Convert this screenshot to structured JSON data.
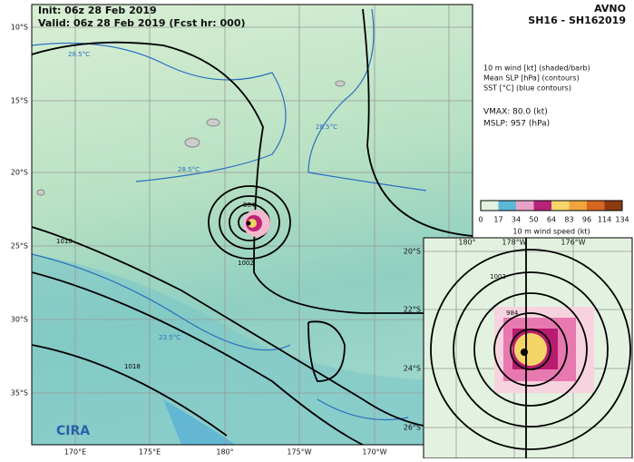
{
  "header": {
    "init": "Init: 06z 28 Feb 2019",
    "valid": "Valid: 06z 28 Feb 2019 (Fcst hr: 000)",
    "model": "AVNO",
    "storm": "SH16 - SH162019"
  },
  "legend": {
    "lines": [
      "10 m wind [kt] (shaded/barb)",
      "Mean SLP [hPa] (contours)",
      "SST [°C] (blue contours)"
    ],
    "vmax": "VMAX:  80.0 (kt)",
    "mslp": "MSLP:  957 (hPa)"
  },
  "colorbar": {
    "ticks": [
      0,
      17,
      34,
      50,
      64,
      83,
      96,
      114,
      134
    ],
    "label": "10 m wind speed (kt)"
  },
  "map": {
    "lat_labels": [
      "10°S",
      "15°S",
      "20°S",
      "25°S",
      "30°S",
      "35°S"
    ],
    "lon_labels": [
      "170°E",
      "175°E",
      "180°",
      "175°W",
      "170°W"
    ],
    "contour_labels": [
      "1010",
      "1002",
      "984",
      "1018",
      "28.5°C",
      "28.5°C",
      "28.5°C",
      "23.5°C"
    ]
  },
  "inset": {
    "lon_labels": [
      "180°",
      "178°W",
      "176°W"
    ],
    "lat_labels": [
      "20°S",
      "22°S",
      "24°S",
      "26°S"
    ],
    "contour_labels": [
      "1002",
      "984"
    ]
  },
  "logo": "CIRA"
}
